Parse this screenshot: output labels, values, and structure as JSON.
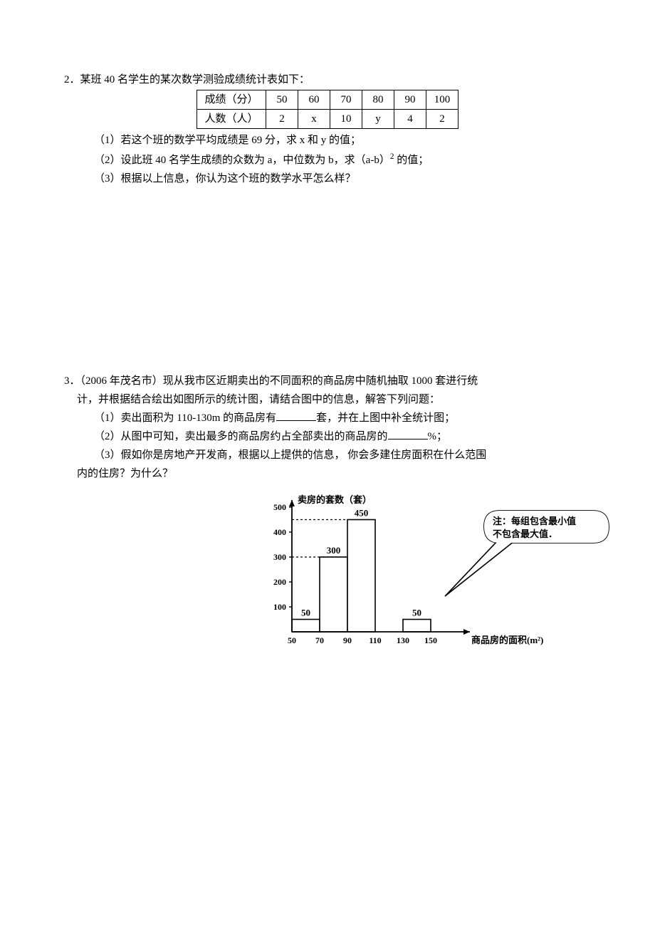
{
  "problem2": {
    "number": "2．",
    "stem": "某班 40 名学生的某次数学测验成绩统计表如下：",
    "table": {
      "row1_label": "成绩（分）",
      "row1": [
        "50",
        "60",
        "70",
        "80",
        "90",
        "100"
      ],
      "row2_label": "人数（人）",
      "row2": [
        "2",
        "x",
        "10",
        "y",
        "4",
        "2"
      ]
    },
    "q1": "（1）若这个班的数学平均成绩是 69 分，求 x 和 y 的值；",
    "q2_pre": "（2）设此班 40 名学生成绩的众数为 a，中位数为 b，求（a-b）",
    "q2_exp": "2",
    "q2_post": " 的值；",
    "q3": "（3）根据以上信息，你认为这个班的数学水平怎么样？"
  },
  "problem3": {
    "number": "3．",
    "stem_a": "（2006 年茂名市）现从我市区近期卖出的不同面积的商品房中随机抽取 1000 套进行统",
    "stem_b": "计，并根据结合绘出如图所示的统计图，请结合图中的信息，解答下列问题：",
    "q1_pre": "（1）卖出面积为 110-130m 的商品房有",
    "q1_post": "套，并在上图中补全统计图；",
    "q2_pre": "（2）从图中可知，卖出最多的商品房约占全部卖出的商品房的",
    "q2_post": "%；",
    "q3_a": "（3）假如你是房地产开发商，根据以上提供的信息， 你会多建住房面积在什么范围",
    "q3_b": "内的住房？为什么？"
  },
  "chart": {
    "type": "bar",
    "y_label": "卖房的套数（套）",
    "x_label": "商品房的面积(m²)",
    "note_line1": "注：每组包含最小值",
    "note_line2": "不包含最大值．",
    "y_ticks": [
      100,
      200,
      300,
      400,
      500
    ],
    "x_ticks": [
      50,
      70,
      90,
      110,
      130,
      150
    ],
    "bars": [
      {
        "x0": 50,
        "x1": 70,
        "value": 50,
        "label": "50"
      },
      {
        "x0": 70,
        "x1": 90,
        "value": 300,
        "label": "300"
      },
      {
        "x0": 90,
        "x1": 110,
        "value": 450,
        "label": "450"
      },
      {
        "x0": 130,
        "x1": 150,
        "value": 50,
        "label": "50"
      }
    ],
    "dash_lines": [
      300,
      450
    ],
    "colors": {
      "axis": "#000000",
      "bar_stroke": "#000000",
      "bar_fill": "#ffffff",
      "dash": "#000000",
      "text": "#000000",
      "note_stroke": "#000000",
      "note_fill": "#ffffff"
    },
    "axis": {
      "ox": 60,
      "oy": 200,
      "x_end": 310,
      "y_top": 15,
      "y_max": 500,
      "x_min": 50,
      "x_max": 150
    },
    "font": {
      "tick_size": 12,
      "label_size": 13,
      "barlabel_size": 13,
      "note_size": 13
    }
  }
}
